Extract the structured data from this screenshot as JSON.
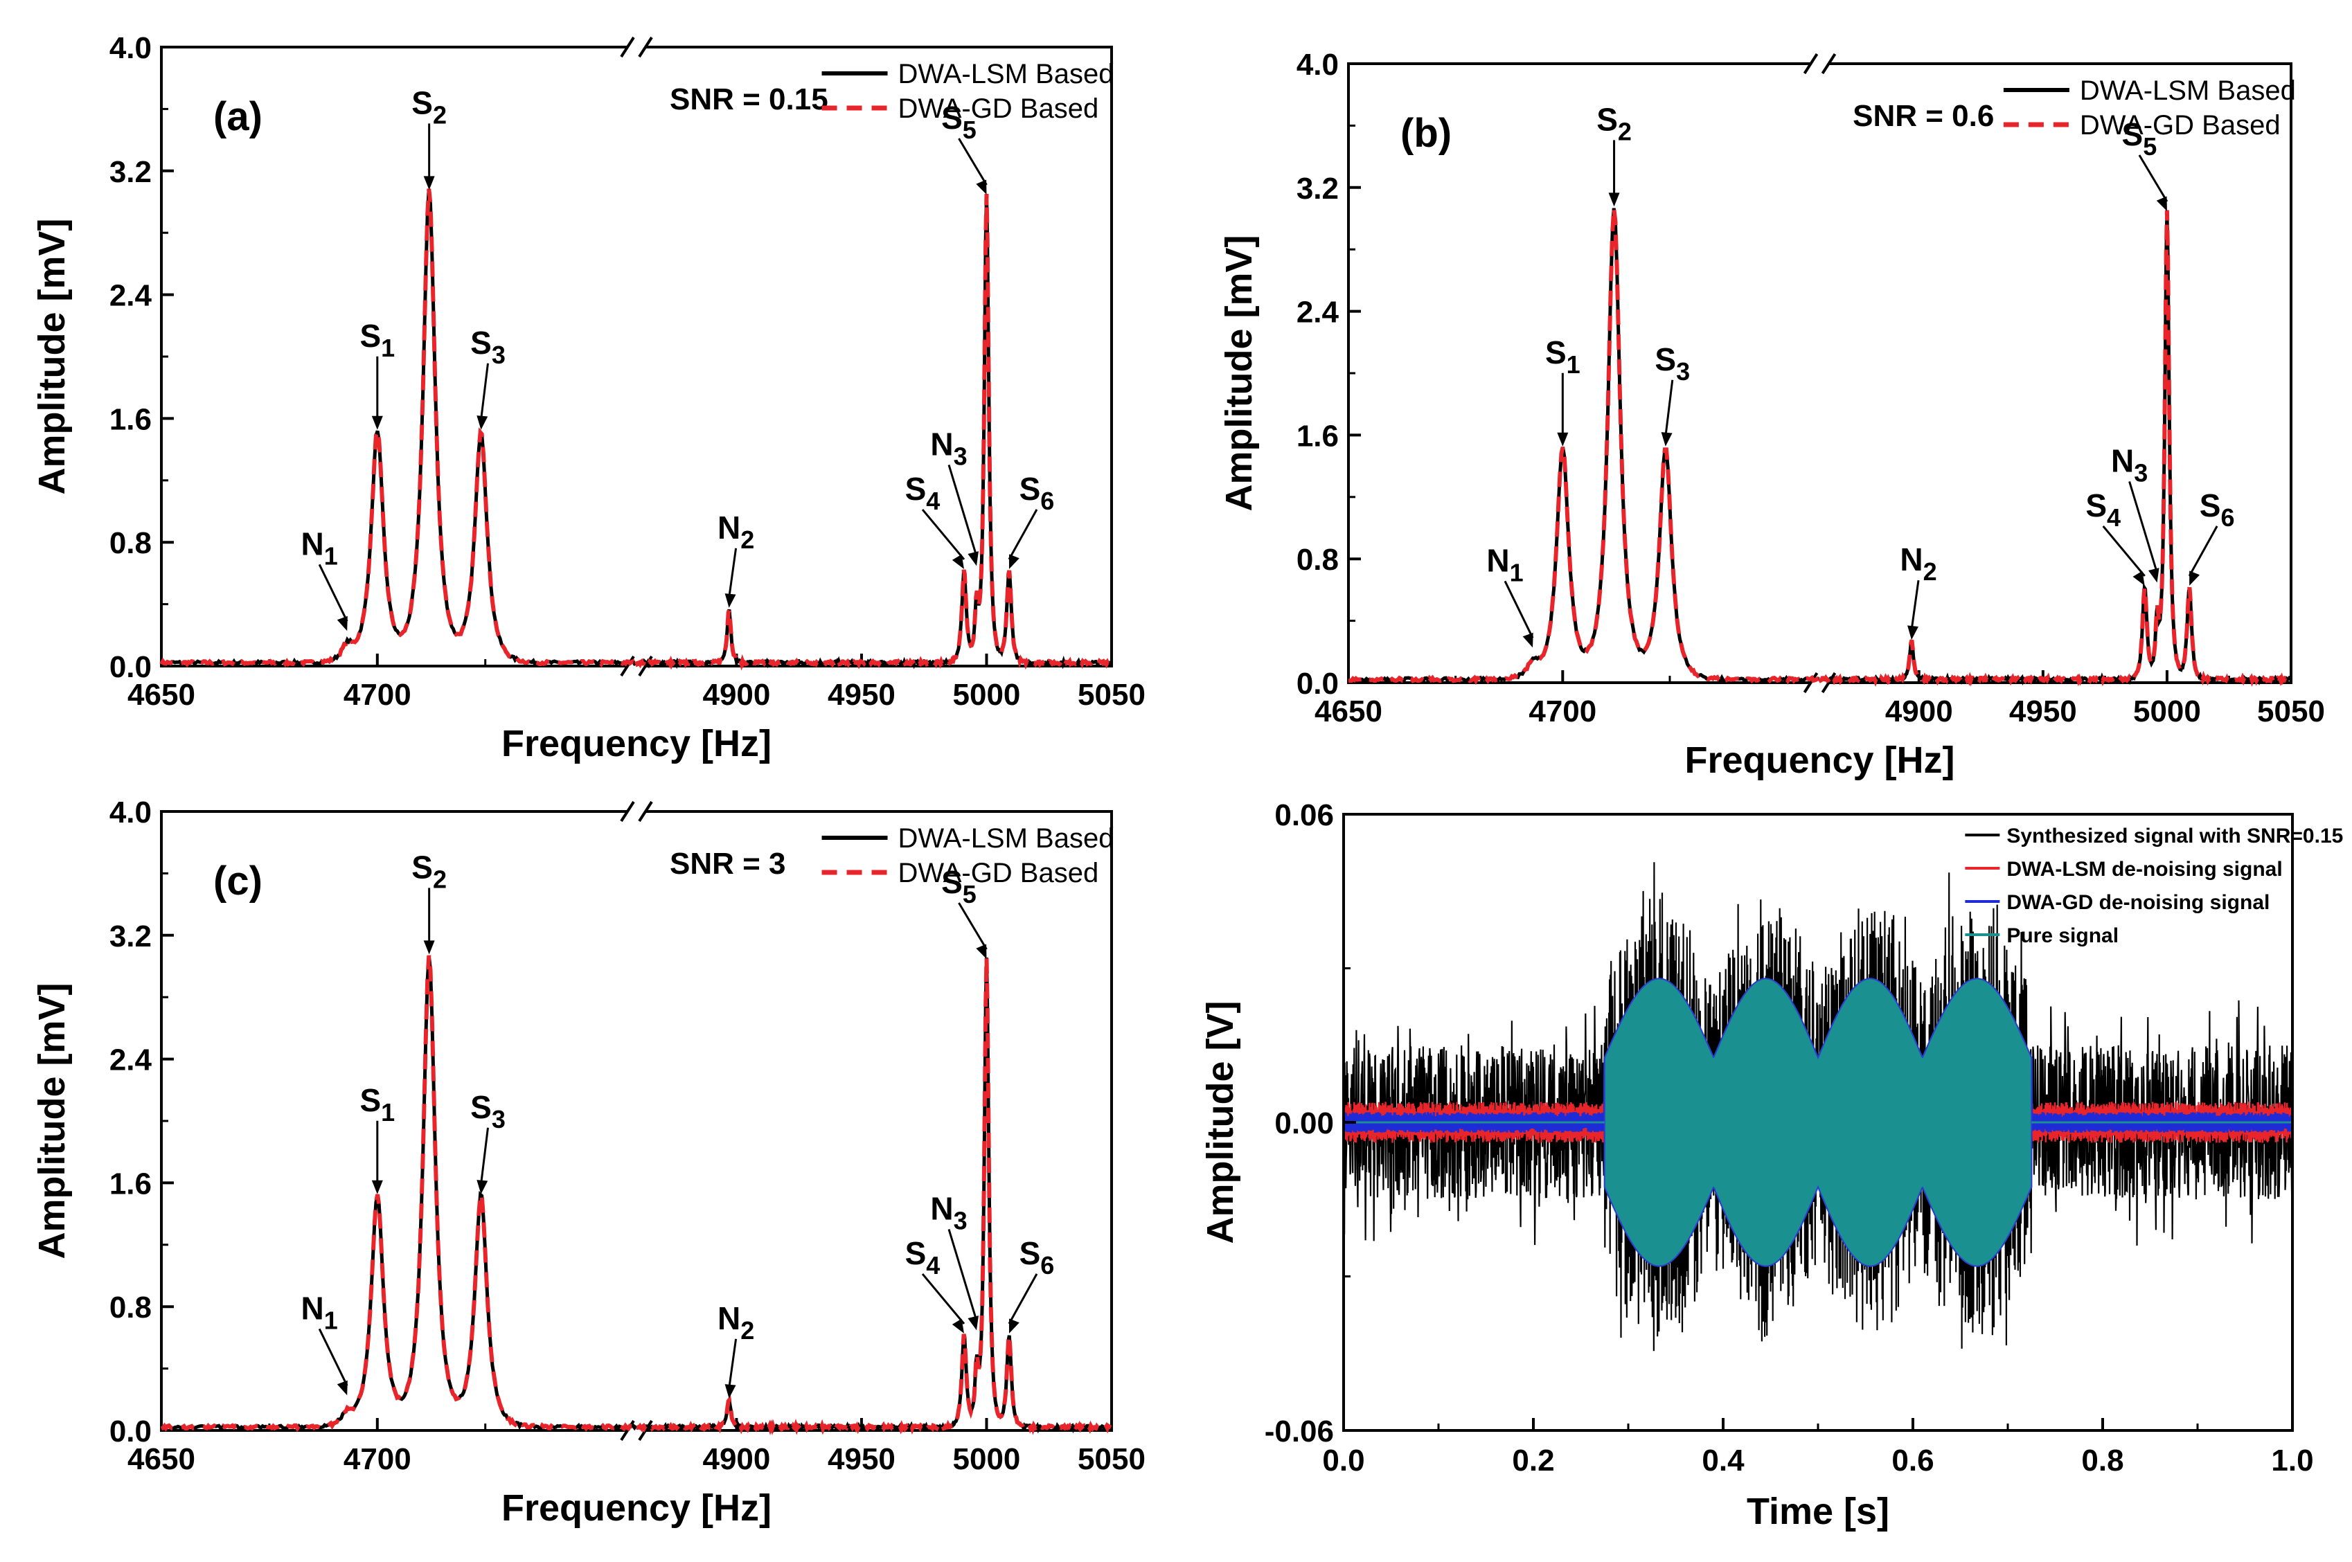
{
  "chart_data": [
    {
      "id": "a",
      "type": "line",
      "panel_label": "(a)",
      "snr_label": "SNR = 0.15",
      "xlabel": "Frequency [Hz]",
      "ylabel": "Amplitude [mV]",
      "xlim": [
        4650,
        5050
      ],
      "axis_break": [
        4760,
        4860
      ],
      "ylim": [
        0.0,
        4.0
      ],
      "x_ticks": [
        "4650",
        "4700",
        "4900",
        "4950",
        "5000",
        "5050"
      ],
      "y_ticks": [
        "0.0",
        "0.8",
        "1.6",
        "2.4",
        "3.2",
        "4.0"
      ],
      "legend": [
        "DWA-LSM Based",
        "DWA-GD Based"
      ],
      "series": [
        {
          "name": "DWA-LSM Based",
          "color": "#000000",
          "style": "solid"
        },
        {
          "name": "DWA-GD Based",
          "color": "#e8252b",
          "style": "dashed"
        }
      ],
      "peaks": [
        {
          "freq": 4700,
          "amp": 1.5,
          "width": 2.2
        },
        {
          "freq": 4712,
          "amp": 3.05,
          "width": 2.2
        },
        {
          "freq": 4724,
          "amp": 1.5,
          "width": 2.2
        },
        {
          "freq": 4897,
          "amp": 0.35,
          "width": 1.2
        },
        {
          "freq": 4991,
          "amp": 0.6,
          "width": 1.4
        },
        {
          "freq": 4996,
          "amp": 0.35,
          "width": 1.0
        },
        {
          "freq": 5000,
          "amp": 3.02,
          "width": 1.4
        },
        {
          "freq": 5009,
          "amp": 0.6,
          "width": 1.4
        },
        {
          "freq": 4693,
          "amp": 0.1,
          "width": 2.0
        }
      ],
      "annotations": [
        {
          "label": "S",
          "sub": "1",
          "freq": 4700,
          "amp": 1.5
        },
        {
          "label": "S",
          "sub": "2",
          "freq": 4712,
          "amp": 3.05
        },
        {
          "label": "S",
          "sub": "3",
          "freq": 4724,
          "amp": 1.5
        },
        {
          "label": "N",
          "sub": "1",
          "freq": 4693,
          "amp": 0.2
        },
        {
          "label": "N",
          "sub": "2",
          "freq": 4897,
          "amp": 0.35
        },
        {
          "label": "S",
          "sub": "4",
          "freq": 4991,
          "amp": 0.6
        },
        {
          "label": "N",
          "sub": "3",
          "freq": 4996,
          "amp": 0.62
        },
        {
          "label": "S",
          "sub": "5",
          "freq": 5000,
          "amp": 3.02
        },
        {
          "label": "S",
          "sub": "6",
          "freq": 5009,
          "amp": 0.6
        }
      ]
    },
    {
      "id": "b",
      "type": "line",
      "panel_label": "(b)",
      "snr_label": "SNR = 0.6",
      "xlabel": "Frequency [Hz]",
      "ylabel": "Amplitude [mV]",
      "xlim": [
        4650,
        5050
      ],
      "axis_break": [
        4760,
        4860
      ],
      "ylim": [
        0.0,
        4.0
      ],
      "x_ticks": [
        "4650",
        "4700",
        "4900",
        "4950",
        "5000",
        "5050"
      ],
      "y_ticks": [
        "0.0",
        "0.8",
        "1.6",
        "2.4",
        "3.2",
        "4.0"
      ],
      "legend": [
        "DWA-LSM Based",
        "DWA-GD Based"
      ],
      "series": [
        {
          "name": "DWA-LSM Based",
          "color": "#000000",
          "style": "solid"
        },
        {
          "name": "DWA-GD Based",
          "color": "#e8252b",
          "style": "dashed"
        }
      ],
      "peaks": [
        {
          "freq": 4700,
          "amp": 1.5,
          "width": 2.2
        },
        {
          "freq": 4712,
          "amp": 3.05,
          "width": 2.2
        },
        {
          "freq": 4724,
          "amp": 1.5,
          "width": 2.2
        },
        {
          "freq": 4897,
          "amp": 0.25,
          "width": 1.2
        },
        {
          "freq": 4991,
          "amp": 0.6,
          "width": 1.4
        },
        {
          "freq": 4996,
          "amp": 0.35,
          "width": 1.0
        },
        {
          "freq": 5000,
          "amp": 3.02,
          "width": 1.4
        },
        {
          "freq": 5009,
          "amp": 0.6,
          "width": 1.4
        },
        {
          "freq": 4693,
          "amp": 0.1,
          "width": 2.0
        }
      ],
      "annotations": [
        {
          "label": "S",
          "sub": "1",
          "freq": 4700,
          "amp": 1.5
        },
        {
          "label": "S",
          "sub": "2",
          "freq": 4712,
          "amp": 3.05
        },
        {
          "label": "S",
          "sub": "3",
          "freq": 4724,
          "amp": 1.5
        },
        {
          "label": "N",
          "sub": "1",
          "freq": 4693,
          "amp": 0.2
        },
        {
          "label": "N",
          "sub": "2",
          "freq": 4897,
          "amp": 0.25
        },
        {
          "label": "S",
          "sub": "4",
          "freq": 4991,
          "amp": 0.6
        },
        {
          "label": "N",
          "sub": "3",
          "freq": 4996,
          "amp": 0.62
        },
        {
          "label": "S",
          "sub": "5",
          "freq": 5000,
          "amp": 3.02
        },
        {
          "label": "S",
          "sub": "6",
          "freq": 5009,
          "amp": 0.6
        }
      ]
    },
    {
      "id": "c",
      "type": "line",
      "panel_label": "(c)",
      "snr_label": "SNR = 3",
      "xlabel": "Frequency [Hz]",
      "ylabel": "Amplitude [mV]",
      "xlim": [
        4650,
        5050
      ],
      "axis_break": [
        4760,
        4860
      ],
      "ylim": [
        0.0,
        4.0
      ],
      "x_ticks": [
        "4650",
        "4700",
        "4900",
        "4950",
        "5000",
        "5050"
      ],
      "y_ticks": [
        "0.0",
        "0.8",
        "1.6",
        "2.4",
        "3.2",
        "4.0"
      ],
      "legend": [
        "DWA-LSM Based",
        "DWA-GD Based"
      ],
      "series": [
        {
          "name": "DWA-LSM Based",
          "color": "#000000",
          "style": "solid"
        },
        {
          "name": "DWA-GD Based",
          "color": "#e8252b",
          "style": "dashed"
        }
      ],
      "peaks": [
        {
          "freq": 4700,
          "amp": 1.5,
          "width": 2.2
        },
        {
          "freq": 4712,
          "amp": 3.05,
          "width": 2.2
        },
        {
          "freq": 4724,
          "amp": 1.5,
          "width": 2.2
        },
        {
          "freq": 4897,
          "amp": 0.18,
          "width": 1.2
        },
        {
          "freq": 4991,
          "amp": 0.6,
          "width": 1.4
        },
        {
          "freq": 4996,
          "amp": 0.35,
          "width": 1.0
        },
        {
          "freq": 5000,
          "amp": 3.02,
          "width": 1.4
        },
        {
          "freq": 5009,
          "amp": 0.6,
          "width": 1.4
        },
        {
          "freq": 4693,
          "amp": 0.08,
          "width": 2.0
        }
      ],
      "annotations": [
        {
          "label": "S",
          "sub": "1",
          "freq": 4700,
          "amp": 1.5
        },
        {
          "label": "S",
          "sub": "2",
          "freq": 4712,
          "amp": 3.05
        },
        {
          "label": "S",
          "sub": "3",
          "freq": 4724,
          "amp": 1.5
        },
        {
          "label": "N",
          "sub": "1",
          "freq": 4693,
          "amp": 0.2
        },
        {
          "label": "N",
          "sub": "2",
          "freq": 4897,
          "amp": 0.18
        },
        {
          "label": "S",
          "sub": "4",
          "freq": 4991,
          "amp": 0.6
        },
        {
          "label": "N",
          "sub": "3",
          "freq": 4996,
          "amp": 0.62
        },
        {
          "label": "S",
          "sub": "5",
          "freq": 5000,
          "amp": 3.02
        },
        {
          "label": "S",
          "sub": "6",
          "freq": 5009,
          "amp": 0.6
        }
      ]
    },
    {
      "id": "d",
      "type": "line",
      "xlabel": "Time [s]",
      "ylabel": "Amplitude [V]",
      "xlim": [
        0.0,
        1.0
      ],
      "ylim": [
        -0.06,
        0.06
      ],
      "x_ticks": [
        "0.0",
        "0.2",
        "0.4",
        "0.6",
        "0.8",
        "1.0"
      ],
      "y_ticks": [
        "-0.06",
        "0.00",
        "0.06"
      ],
      "legend": [
        "Synthesized signal with SNR=0.15",
        "DWA-LSM de-noising signal",
        "DWA-GD de-noising signal",
        "Pure signal"
      ],
      "series": [
        {
          "name": "Synthesized signal with SNR=0.15",
          "color": "#000000",
          "noise_amplitude": 0.015
        },
        {
          "name": "DWA-LSM de-noising signal",
          "color": "#e8252b",
          "noise_amplitude": 0.004
        },
        {
          "name": "DWA-GD de-noising signal",
          "color": "#1f2bd6",
          "noise_amplitude": 0.002
        },
        {
          "name": "Pure signal",
          "color": "#1a9090",
          "bursts": [
            {
              "start": 0.275,
              "end": 0.39,
              "peak": 0.028
            },
            {
              "start": 0.39,
              "end": 0.5,
              "peak": 0.028
            },
            {
              "start": 0.5,
              "end": 0.61,
              "peak": 0.028
            },
            {
              "start": 0.61,
              "end": 0.725,
              "peak": 0.028
            }
          ]
        }
      ]
    }
  ]
}
